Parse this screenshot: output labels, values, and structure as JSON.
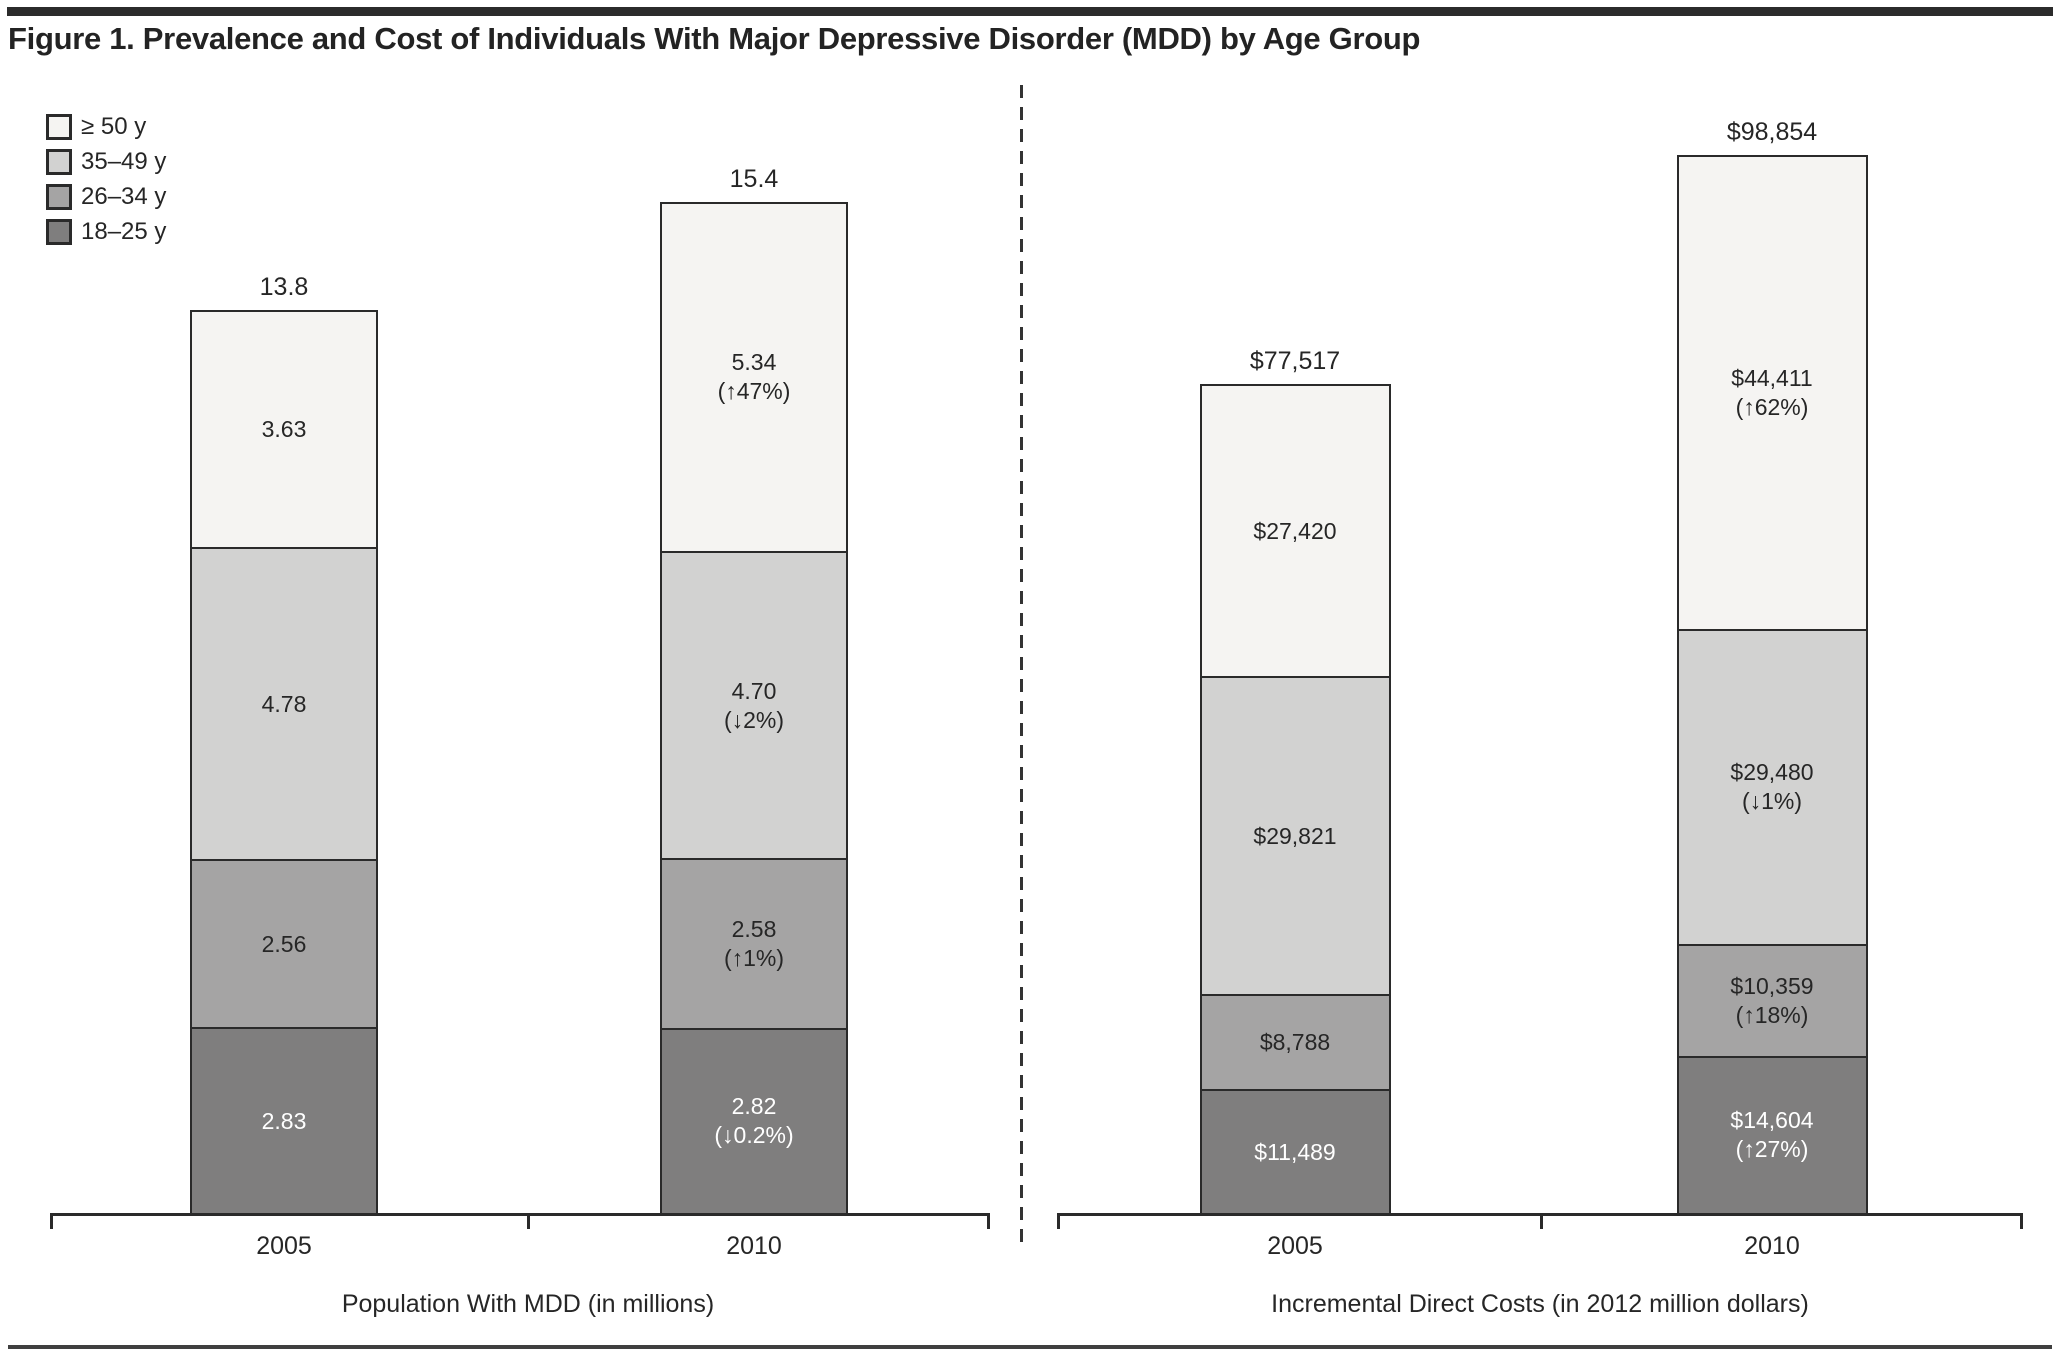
{
  "figure": {
    "title": "Figure 1. Prevalence and Cost of Individuals With Major Depressive Disorder (MDD) by Age Group"
  },
  "legend": {
    "position": "top-left",
    "items": [
      {
        "label": "≥ 50 y",
        "color": "#f5f4f2"
      },
      {
        "label": "35–49 y",
        "color": "#d2d2d1"
      },
      {
        "label": "26–34 y",
        "color": "#a5a4a4"
      },
      {
        "label": "18–25 y",
        "color": "#7f7e7e"
      }
    ]
  },
  "colors": {
    "bar_border": "#2a2a2a",
    "text_dark": "#262626",
    "text_light": "#ffffff",
    "top_rule": "#2b2b2b",
    "bottom_rule": "#3f3f3f"
  },
  "chart_data": [
    {
      "type": "bar",
      "stacked": true,
      "title": "",
      "xlabel": "Population With MDD (in millions)",
      "ylabel": "",
      "grid": false,
      "legend_position": "top-left",
      "categories": [
        "2005",
        "2010"
      ],
      "totals": [
        "13.8",
        "15.4"
      ],
      "series": [
        {
          "name": "18–25 y",
          "color": "#7f7e7e",
          "text_color": "#ffffff",
          "values": [
            2.83,
            2.82
          ],
          "labels": [
            [
              "2.83"
            ],
            [
              "2.82",
              "(↓0.2%)"
            ]
          ]
        },
        {
          "name": "26–34 y",
          "color": "#a5a4a4",
          "text_color": "#262626",
          "values": [
            2.56,
            2.58
          ],
          "labels": [
            [
              "2.56"
            ],
            [
              "2.58",
              "(↑1%)"
            ]
          ]
        },
        {
          "name": "35–49 y",
          "color": "#d2d2d1",
          "text_color": "#262626",
          "values": [
            4.78,
            4.7
          ],
          "labels": [
            [
              "4.78"
            ],
            [
              "4.70",
              "(↓2%)"
            ]
          ]
        },
        {
          "name": "≥ 50 y",
          "color": "#f5f4f2",
          "text_color": "#262626",
          "values": [
            3.63,
            5.34
          ],
          "labels": [
            [
              "3.63"
            ],
            [
              "5.34",
              "(↑47%)"
            ]
          ]
        }
      ]
    },
    {
      "type": "bar",
      "stacked": true,
      "title": "",
      "xlabel": "Incremental Direct Costs (in 2012 million dollars)",
      "ylabel": "",
      "grid": false,
      "categories": [
        "2005",
        "2010"
      ],
      "totals": [
        "$77,517",
        "$98,854"
      ],
      "series": [
        {
          "name": "18–25 y",
          "color": "#7f7e7e",
          "text_color": "#ffffff",
          "values": [
            11489,
            14604
          ],
          "labels": [
            [
              "$11,489"
            ],
            [
              "$14,604",
              "(↑27%)"
            ]
          ]
        },
        {
          "name": "26–34 y",
          "color": "#a5a4a4",
          "text_color": "#262626",
          "values": [
            8788,
            10359
          ],
          "labels": [
            [
              "$8,788"
            ],
            [
              "$10,359",
              "(↑18%)"
            ]
          ]
        },
        {
          "name": "35–49 y",
          "color": "#d2d2d1",
          "text_color": "#262626",
          "values": [
            29821,
            29480
          ],
          "labels": [
            [
              "$29,821"
            ],
            [
              "$29,480",
              "(↓1%)"
            ]
          ]
        },
        {
          "name": "≥ 50 y",
          "color": "#f5f4f2",
          "text_color": "#262626",
          "values": [
            27420,
            44411
          ],
          "labels": [
            [
              "$27,420"
            ],
            [
              "$44,411",
              "(↑62%)"
            ]
          ]
        }
      ]
    }
  ]
}
